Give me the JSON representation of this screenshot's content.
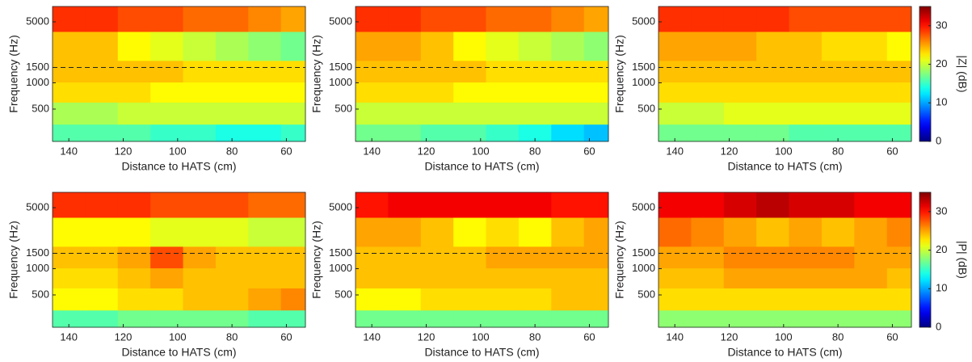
{
  "chart_data": [
    {
      "type": "heatmap",
      "xlabel": "Distance to HATS (cm)",
      "ylabel": "Frequency (Hz)",
      "x": [
        140,
        128,
        116,
        104,
        92,
        80,
        68,
        56
      ],
      "y": [
        250,
        450,
        800,
        1300,
        2500,
        6000
      ],
      "z": [
        [
          16,
          16,
          16,
          15,
          15,
          14,
          14,
          15
        ],
        [
          19,
          19,
          20,
          20,
          20,
          20,
          20,
          20
        ],
        [
          23,
          23,
          23,
          22,
          22,
          22,
          22,
          22
        ],
        [
          24,
          24,
          24,
          24,
          23,
          23,
          23,
          23
        ],
        [
          24,
          24,
          22,
          21,
          20,
          19,
          18,
          17
        ],
        [
          29,
          29,
          28,
          28,
          27,
          27,
          26,
          25
        ]
      ],
      "xlim": [
        146,
        53
      ],
      "xticks": [
        140,
        120,
        100,
        80,
        60
      ],
      "ylim": [
        213,
        7500
      ],
      "yticks": [
        500,
        1000,
        1500,
        5000
      ],
      "yscale": "log",
      "hline": 1500,
      "clim": [
        0,
        35
      ]
    },
    {
      "type": "heatmap",
      "xlabel": "Distance to HATS (cm)",
      "ylabel": "Frequency (Hz)",
      "x": [
        140,
        128,
        116,
        104,
        92,
        80,
        68,
        56
      ],
      "y": [
        250,
        450,
        800,
        1300,
        2500,
        6000
      ],
      "z": [
        [
          17,
          17,
          16,
          16,
          15,
          14,
          12,
          11
        ],
        [
          20,
          20,
          20,
          20,
          20,
          20,
          20,
          20
        ],
        [
          23,
          23,
          23,
          22,
          22,
          22,
          22,
          22
        ],
        [
          24,
          24,
          24,
          24,
          23,
          23,
          23,
          23
        ],
        [
          25,
          25,
          24,
          22,
          21,
          20,
          19,
          18
        ],
        [
          29,
          29,
          28,
          28,
          27,
          27,
          26,
          25
        ]
      ],
      "xlim": [
        146,
        53
      ],
      "xticks": [
        140,
        120,
        100,
        80,
        60
      ],
      "ylim": [
        213,
        7500
      ],
      "yticks": [
        500,
        1000,
        1500,
        5000
      ],
      "yscale": "log",
      "hline": 1500,
      "clim": [
        0,
        35
      ]
    },
    {
      "type": "heatmap",
      "xlabel": "Distance to HATS (cm)",
      "ylabel": "Frequency (Hz)",
      "x": [
        140,
        128,
        116,
        104,
        92,
        80,
        68,
        56
      ],
      "y": [
        250,
        450,
        800,
        1300,
        2500,
        6000
      ],
      "z": [
        [
          17,
          17,
          17,
          17,
          16,
          16,
          16,
          16
        ],
        [
          20,
          20,
          21,
          21,
          21,
          21,
          21,
          21
        ],
        [
          23,
          23,
          23,
          23,
          23,
          23,
          23,
          23
        ],
        [
          24,
          24,
          24,
          24,
          24,
          24,
          24,
          24
        ],
        [
          25,
          25,
          25,
          24,
          24,
          23,
          23,
          22
        ],
        [
          29,
          29,
          29,
          29,
          28,
          28,
          28,
          28
        ]
      ],
      "xlim": [
        146,
        53
      ],
      "xticks": [
        140,
        120,
        100,
        80,
        60
      ],
      "ylim": [
        213,
        7500
      ],
      "yticks": [
        500,
        1000,
        1500,
        5000
      ],
      "yscale": "log",
      "hline": 1500,
      "clim": [
        0,
        35
      ],
      "colorbar": {
        "label": "|Z| (dB)",
        "ticks": [
          0,
          10,
          20,
          30
        ]
      }
    },
    {
      "type": "heatmap",
      "xlabel": "Distance to HATS (cm)",
      "ylabel": "Frequency (Hz)",
      "x": [
        140,
        128,
        116,
        104,
        92,
        80,
        68,
        56
      ],
      "y": [
        250,
        450,
        800,
        1300,
        2500,
        6000
      ],
      "z": [
        [
          16,
          16,
          17,
          17,
          17,
          17,
          16,
          16
        ],
        [
          22,
          22,
          23,
          23,
          24,
          24,
          25,
          26
        ],
        [
          23,
          23,
          24,
          25,
          24,
          24,
          24,
          24
        ],
        [
          24,
          24,
          25,
          28,
          25,
          24,
          24,
          24
        ],
        [
          22,
          22,
          22,
          21,
          21,
          21,
          20,
          20
        ],
        [
          29,
          29,
          29,
          28,
          28,
          28,
          27,
          27
        ]
      ],
      "xlim": [
        146,
        53
      ],
      "xticks": [
        140,
        120,
        100,
        80,
        60
      ],
      "ylim": [
        213,
        7500
      ],
      "yticks": [
        500,
        1000,
        1500,
        5000
      ],
      "yscale": "log",
      "hline": 1500,
      "clim": [
        0,
        35
      ]
    },
    {
      "type": "heatmap",
      "xlabel": "Distance to HATS (cm)",
      "ylabel": "Frequency (Hz)",
      "x": [
        140,
        128,
        116,
        104,
        92,
        80,
        68,
        56
      ],
      "y": [
        250,
        450,
        800,
        1300,
        2500,
        6000
      ],
      "z": [
        [
          17,
          17,
          17,
          17,
          17,
          17,
          17,
          17
        ],
        [
          22,
          22,
          23,
          23,
          23,
          23,
          24,
          24
        ],
        [
          24,
          24,
          24,
          24,
          24,
          24,
          24,
          24
        ],
        [
          24,
          24,
          24,
          24,
          25,
          25,
          25,
          25
        ],
        [
          25,
          25,
          24,
          22,
          23,
          22,
          24,
          25
        ],
        [
          30,
          31,
          31,
          31,
          31,
          31,
          30,
          30
        ]
      ],
      "xlim": [
        146,
        53
      ],
      "xticks": [
        140,
        120,
        100,
        80,
        60
      ],
      "ylim": [
        213,
        7500
      ],
      "yticks": [
        500,
        1000,
        1500,
        5000
      ],
      "yscale": "log",
      "hline": 1500,
      "clim": [
        0,
        35
      ]
    },
    {
      "type": "heatmap",
      "xlabel": "Distance to HATS (cm)",
      "ylabel": "Frequency (Hz)",
      "x": [
        140,
        128,
        116,
        104,
        92,
        80,
        68,
        56
      ],
      "y": [
        250,
        450,
        800,
        1300,
        2500,
        6000
      ],
      "z": [
        [
          18,
          18,
          18,
          18,
          18,
          18,
          18,
          18
        ],
        [
          23,
          23,
          23,
          23,
          23,
          23,
          23,
          23
        ],
        [
          24,
          24,
          25,
          25,
          25,
          25,
          25,
          24
        ],
        [
          25,
          25,
          26,
          26,
          26,
          26,
          25,
          25
        ],
        [
          27,
          26,
          25,
          24,
          25,
          24,
          25,
          26
        ],
        [
          31,
          31,
          32,
          33,
          32,
          32,
          31,
          31
        ]
      ],
      "xlim": [
        146,
        53
      ],
      "xticks": [
        140,
        120,
        100,
        80,
        60
      ],
      "ylim": [
        213,
        7500
      ],
      "yticks": [
        500,
        1000,
        1500,
        5000
      ],
      "yscale": "log",
      "hline": 1500,
      "clim": [
        0,
        35
      ],
      "colorbar": {
        "label": "|P| (dB)",
        "ticks": [
          0,
          10,
          20,
          30
        ]
      }
    }
  ]
}
